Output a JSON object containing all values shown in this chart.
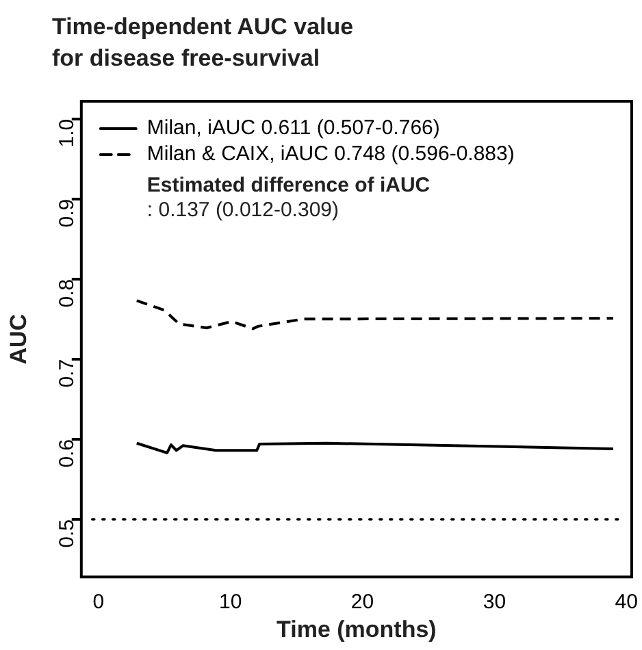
{
  "chart_data": {
    "type": "line",
    "title": "Time-dependent AUC value for disease free-survival",
    "xlabel": "Time (months)",
    "ylabel": "AUC",
    "annotations": [
      "Estimated difference of iAUC",
      ": 0.137 (0.012-0.309)"
    ],
    "series": [
      {
        "name": "Milan, iAUC 0.611 (0.507-0.766)",
        "color": "#000000",
        "line_style": "solid",
        "x": [
          2.9,
          5.2,
          5.5,
          5.9,
          6.4,
          8.9,
          12.0,
          12.2,
          17.3,
          39.0
        ],
        "values": [
          0.595,
          0.583,
          0.593,
          0.586,
          0.592,
          0.586,
          0.586,
          0.594,
          0.595,
          0.588
        ]
      },
      {
        "name": "Milan & CAIX, iAUC 0.748 (0.596-0.883)",
        "color": "#000000",
        "line_style": "dashed",
        "x": [
          2.9,
          5.0,
          6.1,
          8.2,
          10.1,
          11.7,
          12.1,
          15.5,
          39.0
        ],
        "values": [
          0.773,
          0.761,
          0.744,
          0.739,
          0.747,
          0.738,
          0.741,
          0.75,
          0.751
        ]
      }
    ],
    "ref_lines": [
      {
        "axis": "y",
        "value": 0.5,
        "color": "#000000",
        "line_style": "dotted"
      }
    ],
    "xlim": [
      -1.3,
      40.4
    ],
    "xticks": [
      0,
      10,
      20,
      30,
      40
    ],
    "ylim": [
      0.428,
      1.022
    ],
    "yticks": [
      0.5,
      0.6,
      0.7,
      0.8,
      0.9,
      {
        "value": 1,
        "label": "1.0"
      }
    ],
    "legend": "top left",
    "grid": false,
    "marker": "none"
  }
}
